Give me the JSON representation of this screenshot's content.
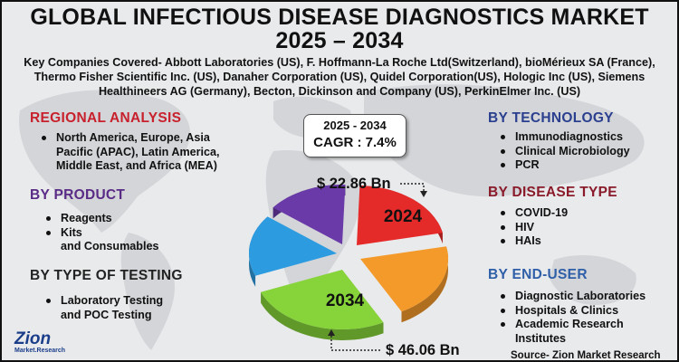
{
  "header": {
    "title_line1": "GLOBAL INFECTIOUS DISEASE DIAGNOSTICS MARKET",
    "title_line2": "2025 – 2034"
  },
  "companies_text": "Key Companies Covered- Abbott Laboratories (US), F. Hoffmann-La Roche Ltd(Switzerland), bioMérieux SA (France), Thermo Fisher Scientific Inc. (US), Danaher Corporation (US), Quidel Corporation(US), Hologic Inc (US), Siemens Healthineers AG (Germany), Becton, Dickinson and Company (US), PerkinElmer Inc. (US)",
  "sections": {
    "regional": {
      "heading": "REGIONAL ANALYSIS",
      "items": [
        "North America, Europe, Asia Pacific (APAC), Latin America, Middle East, and Africa (MEA)"
      ]
    },
    "product": {
      "heading": "BY PRODUCT",
      "items": [
        "Reagents",
        "Kits",
        "and Consumables"
      ]
    },
    "testing": {
      "heading": "BY TYPE OF TESTING",
      "items": [
        "Laboratory Testing",
        "and POC Testing"
      ]
    },
    "technology": {
      "heading": "BY TECHNOLOGY",
      "items": [
        "Immunodiagnostics",
        "Clinical Microbiology",
        "PCR"
      ]
    },
    "disease": {
      "heading": "BY DISEASE TYPE",
      "items": [
        "COVID-19",
        "HIV",
        "HAIs"
      ]
    },
    "enduser": {
      "heading": "BY END-USER",
      "items": [
        "Diagnostic Laboratories",
        "Hospitals & Clinics",
        "Academic Research",
        "Institutes"
      ]
    }
  },
  "cagr_box": {
    "period": "2025 - 2034",
    "cagr": "CAGR : 7.4%"
  },
  "chart_data": {
    "type": "pie",
    "slice_colors": [
      "#e52a2a",
      "#f49a2a",
      "#86d33a",
      "#2c9be0",
      "#6a3aa8"
    ],
    "annotations": [
      {
        "year": "2024",
        "value_label": "$ 22.86 Bn"
      },
      {
        "year": "2034",
        "value_label": "$ 46.06 Bn"
      }
    ]
  },
  "footer": {
    "source": "Source- Zion Market Research"
  },
  "logo": {
    "name": "Zion",
    "sub": "Market.Research"
  }
}
